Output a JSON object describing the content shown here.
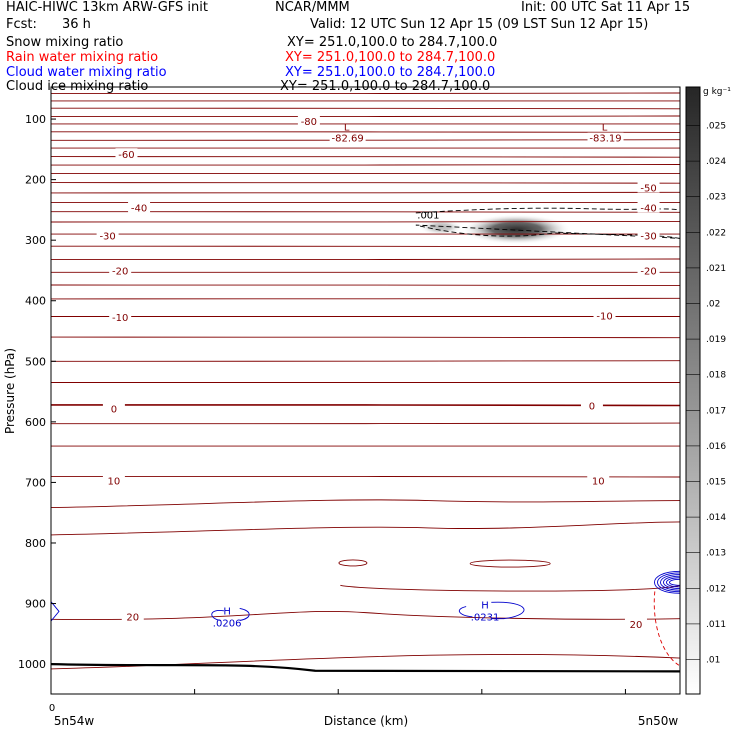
{
  "header": {
    "model": "HAIC-HIWC 13km ARW-GFS init",
    "org": "NCAR/MMM",
    "init": "Init: 00 UTC Sat 11 Apr 15",
    "fcst_label": "Fcst:",
    "fcst_value": "36 h",
    "valid": "Valid: 12 UTC Sun 12 Apr 15 (09 LST Sun 12 Apr 15)"
  },
  "fields": [
    {
      "name": "Snow mixing ratio",
      "xy": "XY= 251.0,100.0 to 284.7,100.0",
      "color": "#000000"
    },
    {
      "name": "Rain water mixing ratio",
      "xy": "XY= 251.0,100.0 to 284.7,100.0",
      "color": "#ff0000"
    },
    {
      "name": "Cloud water mixing ratio",
      "xy": "XY= 251.0,100.0 to 284.7,100.0",
      "color": "#0000ff"
    },
    {
      "name": "Cloud ice mixing ratio",
      "xy": "XY= 251.0,100.0 to 284.7,100.0",
      "color": "#000000"
    }
  ],
  "colors": {
    "temperature_contour": "#800000",
    "cloud_water_contour": "#0000cc",
    "rain_contour": "#dd0000",
    "snow_contour": "#000000",
    "ground": "#000000"
  },
  "chart_data": {
    "type": "cross-section",
    "ylabel": "Pressure (hPa)",
    "xlabel": "Distance (km)",
    "y_ticks": [
      100,
      200,
      300,
      400,
      500,
      600,
      700,
      800,
      900,
      1000
    ],
    "ylim": [
      1050,
      50
    ],
    "x_tick_label": "0",
    "x_left_label": "5n54w",
    "x_right_label": "5n50w",
    "temperature_labels": [
      {
        "label": "-80",
        "x": 0.41,
        "p": 103
      },
      {
        "label": "-60",
        "x": 0.12,
        "p": 158
      },
      {
        "label": "-50",
        "x": 0.95,
        "p": 213
      },
      {
        "label": "-40",
        "x": 0.14,
        "p": 246
      },
      {
        "label": "-40",
        "x": 0.95,
        "p": 246
      },
      {
        "label": "-30",
        "x": 0.09,
        "p": 292
      },
      {
        "label": "-30",
        "x": 0.95,
        "p": 292
      },
      {
        "label": "-20",
        "x": 0.11,
        "p": 350
      },
      {
        "label": "-20",
        "x": 0.95,
        "p": 350
      },
      {
        "label": "-10",
        "x": 0.11,
        "p": 427
      },
      {
        "label": "-10",
        "x": 0.88,
        "p": 424
      },
      {
        "label": "0",
        "x": 0.1,
        "p": 578
      },
      {
        "label": "0",
        "x": 0.86,
        "p": 573
      },
      {
        "label": "10",
        "x": 0.1,
        "p": 697
      },
      {
        "label": "10",
        "x": 0.87,
        "p": 697
      },
      {
        "label": "20",
        "x": 0.13,
        "p": 921
      },
      {
        "label": "20",
        "x": 0.93,
        "p": 934
      }
    ],
    "isotherm_levels": [
      58,
      70,
      82,
      96,
      108,
      121,
      135,
      148,
      162,
      176,
      190,
      205,
      222,
      238,
      253,
      270,
      290,
      310,
      332,
      353,
      374,
      397,
      426,
      460,
      500,
      535,
      572,
      603,
      640,
      690,
      735,
      780
    ],
    "lows": [
      {
        "mark": "L",
        "value": "-82.69",
        "x": 0.47,
        "p": 86
      },
      {
        "mark": "L",
        "value": "-83.19",
        "x": 0.88,
        "p": 86
      }
    ],
    "highs": [
      {
        "mark": "H",
        "value": ".0206",
        "x": 0.28,
        "p": 920
      },
      {
        "mark": "H",
        "value": ".0231",
        "x": 0.69,
        "p": 910
      }
    ],
    "snow_label": {
      "value": ".001",
      "x": 0.6,
      "p": 264
    },
    "snow_max": {
      "x": 0.74,
      "p": 282
    },
    "shading_scale": {
      "unit": "g kg⁻¹",
      "levels": [
        ".025",
        ".024",
        ".023",
        ".022",
        ".021",
        ".02",
        ".019",
        ".018",
        ".017",
        ".016",
        ".015",
        ".014",
        ".013",
        ".012",
        ".011",
        ".01"
      ]
    }
  }
}
